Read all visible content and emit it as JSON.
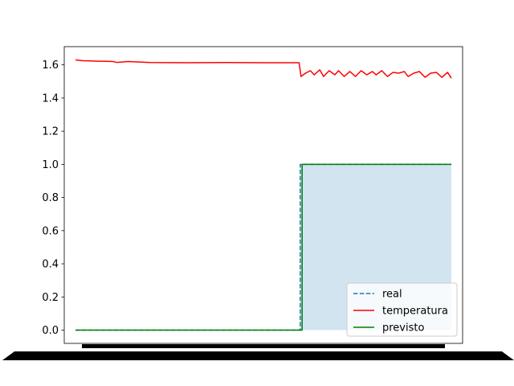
{
  "chart_data": {
    "type": "line",
    "title": "",
    "xlabel": "",
    "ylabel": "",
    "ylim": [
      -0.08,
      1.71
    ],
    "yticks": [
      "0.0",
      "0.2",
      "0.4",
      "0.6",
      "0.8",
      "1.0",
      "1.2",
      "1.4",
      "1.6"
    ],
    "xlim": [
      -0.03,
      1.03
    ],
    "x_ticks_note": "dense overlapping date tick labels rendered as an illegible black band",
    "x": [
      0,
      0.02,
      0.1,
      0.11,
      0.14,
      0.2,
      0.3,
      0.4,
      0.5,
      0.595,
      0.6,
      0.612,
      0.615,
      0.62,
      0.65,
      0.66,
      0.69,
      0.7,
      0.73,
      0.75,
      0.78,
      0.8,
      0.82,
      0.84,
      0.86,
      0.88,
      0.9,
      0.92,
      0.94,
      0.96,
      0.98,
      1.0
    ],
    "series": [
      {
        "name": "real",
        "color": "#1f77b4",
        "style": "dashed",
        "points": [
          [
            0,
            0
          ],
          [
            0.598,
            0
          ],
          [
            0.598,
            1
          ],
          [
            1.0,
            1
          ]
        ]
      },
      {
        "name": "temperatura",
        "color": "#ff0000",
        "style": "solid",
        "points": [
          [
            0,
            1.63
          ],
          [
            0.02,
            1.625
          ],
          [
            0.1,
            1.62
          ],
          [
            0.11,
            1.615
          ],
          [
            0.14,
            1.62
          ],
          [
            0.2,
            1.614
          ],
          [
            0.3,
            1.613
          ],
          [
            0.4,
            1.614
          ],
          [
            0.5,
            1.613
          ],
          [
            0.595,
            1.613
          ],
          [
            0.6,
            1.53
          ],
          [
            0.612,
            1.55
          ],
          [
            0.625,
            1.565
          ],
          [
            0.635,
            1.54
          ],
          [
            0.65,
            1.57
          ],
          [
            0.66,
            1.53
          ],
          [
            0.675,
            1.565
          ],
          [
            0.69,
            1.54
          ],
          [
            0.7,
            1.565
          ],
          [
            0.715,
            1.53
          ],
          [
            0.73,
            1.56
          ],
          [
            0.745,
            1.53
          ],
          [
            0.76,
            1.565
          ],
          [
            0.775,
            1.54
          ],
          [
            0.79,
            1.56
          ],
          [
            0.8,
            1.54
          ],
          [
            0.815,
            1.565
          ],
          [
            0.83,
            1.53
          ],
          [
            0.845,
            1.555
          ],
          [
            0.86,
            1.55
          ],
          [
            0.875,
            1.56
          ],
          [
            0.885,
            1.53
          ],
          [
            0.9,
            1.55
          ],
          [
            0.915,
            1.56
          ],
          [
            0.93,
            1.525
          ],
          [
            0.945,
            1.55
          ],
          [
            0.96,
            1.555
          ],
          [
            0.975,
            1.525
          ],
          [
            0.99,
            1.555
          ],
          [
            1.0,
            1.52
          ]
        ]
      },
      {
        "name": "previsto",
        "color": "#008000",
        "style": "solid",
        "points": [
          [
            0,
            0
          ],
          [
            0.603,
            0
          ],
          [
            0.603,
            1
          ],
          [
            1.0,
            1
          ]
        ]
      }
    ],
    "fill": {
      "color": "#1f77b4",
      "opacity": 0.2,
      "from_x": 0.598,
      "to_x": 1.0,
      "y_low": 0,
      "y_high": 1
    },
    "legend": {
      "placement": "lower-right",
      "entries": [
        "real",
        "temperatura",
        "previsto"
      ]
    },
    "grid": false
  }
}
